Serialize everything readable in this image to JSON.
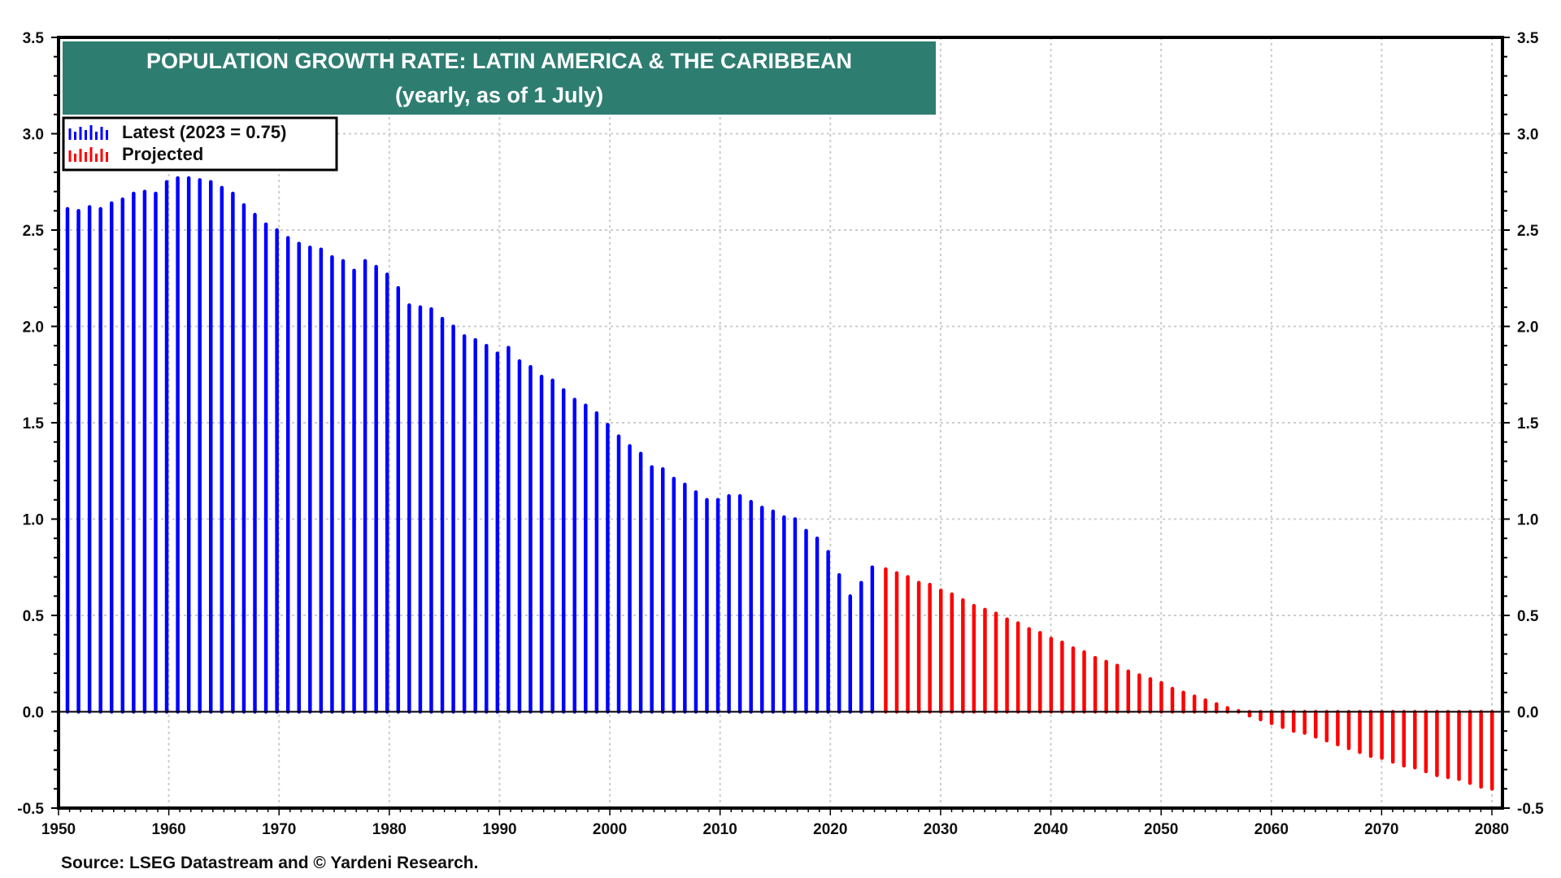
{
  "chart_data": {
    "type": "bar",
    "title": "POPULATION GROWTH RATE: LATIN AMERICA & THE CARIBBEAN",
    "subtitle": "(yearly, as of 1 July)",
    "xlabel": "",
    "ylabel": "",
    "xlim": [
      1950,
      2080
    ],
    "ylim": [
      -0.5,
      3.5
    ],
    "x_ticks": [
      "1950",
      "1960",
      "1970",
      "1980",
      "1990",
      "2000",
      "2010",
      "2020",
      "2030",
      "2040",
      "2050",
      "2060",
      "2070",
      "2080"
    ],
    "y_ticks": [
      "3.5",
      "3.0",
      "2.5",
      "2.0",
      "1.5",
      "1.0",
      "0.5",
      "0.0",
      "-0.5"
    ],
    "y_tick_values": [
      3.5,
      3.0,
      2.5,
      2.0,
      1.5,
      1.0,
      0.5,
      0.0,
      -0.5
    ],
    "grid": true,
    "legend_position": "top-left",
    "series": [
      {
        "name": "Latest (2023 = 0.75)",
        "color": "#0000FF",
        "start_year": 1950,
        "values": [
          2.61,
          2.6,
          2.62,
          2.61,
          2.64,
          2.66,
          2.69,
          2.7,
          2.69,
          2.75,
          2.77,
          2.77,
          2.76,
          2.75,
          2.72,
          2.69,
          2.63,
          2.58,
          2.53,
          2.5,
          2.46,
          2.43,
          2.41,
          2.4,
          2.36,
          2.34,
          2.29,
          2.34,
          2.31,
          2.27,
          2.2,
          2.11,
          2.1,
          2.09,
          2.04,
          2.0,
          1.95,
          1.93,
          1.9,
          1.86,
          1.89,
          1.82,
          1.79,
          1.74,
          1.72,
          1.67,
          1.62,
          1.59,
          1.55,
          1.49,
          1.43,
          1.38,
          1.34,
          1.27,
          1.26,
          1.21,
          1.18,
          1.14,
          1.1,
          1.1,
          1.12,
          1.12,
          1.09,
          1.06,
          1.04,
          1.01,
          1.0,
          0.94,
          0.9,
          0.83,
          0.71,
          0.6,
          0.67,
          0.75
        ]
      },
      {
        "name": "Projected",
        "color": "#FF0000",
        "start_year": 2024,
        "values": [
          0.74,
          0.72,
          0.7,
          0.67,
          0.66,
          0.63,
          0.61,
          0.58,
          0.55,
          0.53,
          0.51,
          0.48,
          0.46,
          0.43,
          0.41,
          0.38,
          0.36,
          0.33,
          0.31,
          0.28,
          0.26,
          0.24,
          0.21,
          0.19,
          0.17,
          0.15,
          0.12,
          0.1,
          0.08,
          0.06,
          0.04,
          0.02,
          0.005,
          -0.02,
          -0.04,
          -0.06,
          -0.08,
          -0.1,
          -0.11,
          -0.13,
          -0.15,
          -0.17,
          -0.19,
          -0.21,
          -0.23,
          -0.24,
          -0.26,
          -0.28,
          -0.29,
          -0.31,
          -0.33,
          -0.34,
          -0.35,
          -0.37,
          -0.39,
          -0.4
        ]
      }
    ],
    "source": "Source: LSEG Datastream and © Yardeni Research."
  },
  "colors": {
    "title_box": "#2E7D71",
    "latest": "#0000FF",
    "projected": "#FF0000",
    "grid": "#CCCCCC",
    "axis": "#000000"
  }
}
